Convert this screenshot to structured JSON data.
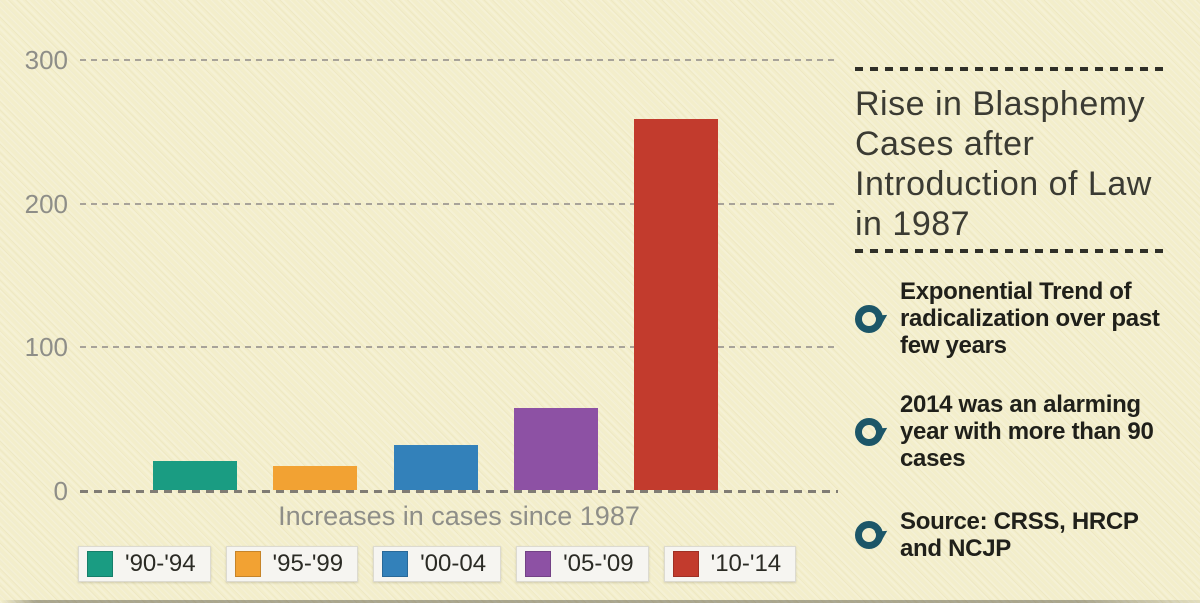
{
  "background_color": "#f3eecb",
  "chart_data": {
    "type": "bar",
    "title": "Rise in Blasphemy Cases after Introduction of Law in 1987",
    "xlabel": "Increases in cases since 1987",
    "categories": [
      "'90-'94",
      "'95-'99",
      "'00-04",
      "'05-'09",
      "'10-'14"
    ],
    "values": [
      20,
      17,
      31,
      57,
      258
    ],
    "bar_colors": [
      "#1a9c82",
      "#f2a233",
      "#3381ba",
      "#8d51a4",
      "#c23b2d"
    ],
    "yticks": [
      0,
      100,
      200,
      300
    ],
    "ylim": [
      0,
      300
    ],
    "grid": "horizontal-dashed",
    "gridline_color": "#a8a399",
    "axis_text_color": "#8e8e88",
    "legend_position": "bottom"
  },
  "panel": {
    "title_lines": [
      "Rise in Blasphemy",
      "Cases after",
      "Introduction of Law",
      "in 1987"
    ],
    "bullets": [
      {
        "icon": "circle-pointer-icon",
        "text": "Exponential Trend of radicalization over past few years"
      },
      {
        "icon": "circle-pointer-icon",
        "text": "2014 was an alarming year with more than 90 cases"
      },
      {
        "icon": "circle-pointer-icon",
        "text": "Source: CRSS, HRCP and NCJP"
      }
    ],
    "accent_color": "#1c5668",
    "separator_style": "dashed"
  }
}
